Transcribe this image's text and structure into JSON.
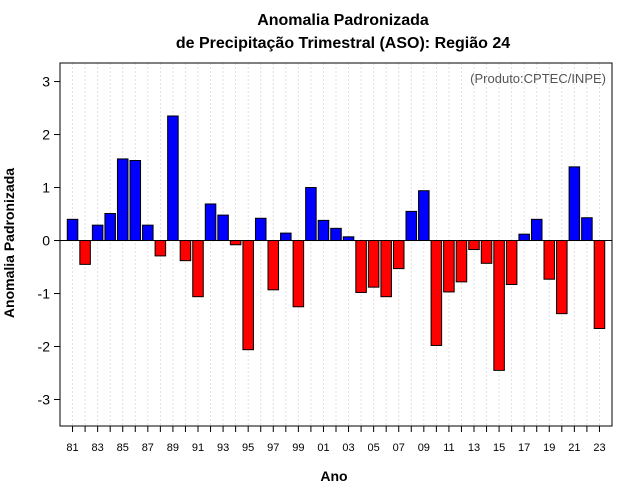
{
  "chart_data": {
    "type": "bar",
    "title_line1": "Anomalia Padronizada",
    "title_line2": "de Precipitação Trimestral (ASO): Região 24",
    "xlabel": "Ano",
    "ylabel": "Anomalia Padronizada",
    "credit": "(Produto:CPTEC/INPE)",
    "ylim": [
      -3.5,
      3.35
    ],
    "yticks": [
      -3,
      -2,
      -1,
      0,
      1,
      2,
      3
    ],
    "ytick_labels": [
      "-3",
      "-2",
      "-1",
      "0",
      "1",
      "2",
      "3"
    ],
    "grid": true,
    "colors": {
      "positive": "#0000ff",
      "negative": "#ff0000",
      "grid": "#d9d9d9"
    },
    "categories": [
      "81",
      "82",
      "83",
      "84",
      "85",
      "86",
      "87",
      "88",
      "89",
      "90",
      "91",
      "92",
      "93",
      "94",
      "95",
      "96",
      "97",
      "98",
      "99",
      "00",
      "01",
      "02",
      "03",
      "04",
      "05",
      "06",
      "07",
      "08",
      "09",
      "10",
      "11",
      "12",
      "13",
      "14",
      "15",
      "16",
      "17",
      "18",
      "19",
      "20",
      "21",
      "22",
      "23"
    ],
    "xtick_labels": [
      "81",
      "83",
      "85",
      "87",
      "89",
      "91",
      "93",
      "95",
      "97",
      "99",
      "01",
      "03",
      "05",
      "07",
      "09",
      "11",
      "13",
      "15",
      "17",
      "19",
      "21",
      "23"
    ],
    "values": [
      0.4,
      -0.45,
      0.29,
      0.51,
      1.54,
      1.51,
      0.29,
      -0.29,
      2.35,
      -0.38,
      -1.06,
      0.69,
      0.48,
      -0.08,
      -2.06,
      0.42,
      -0.93,
      0.14,
      -1.25,
      1.0,
      0.38,
      0.23,
      0.07,
      -0.98,
      -0.88,
      -1.06,
      -0.53,
      0.55,
      0.94,
      -1.98,
      -0.97,
      -0.78,
      -0.17,
      -0.43,
      -2.45,
      -0.83,
      0.12,
      0.4,
      -0.73,
      -1.38,
      1.39,
      0.43,
      -1.66
    ]
  }
}
